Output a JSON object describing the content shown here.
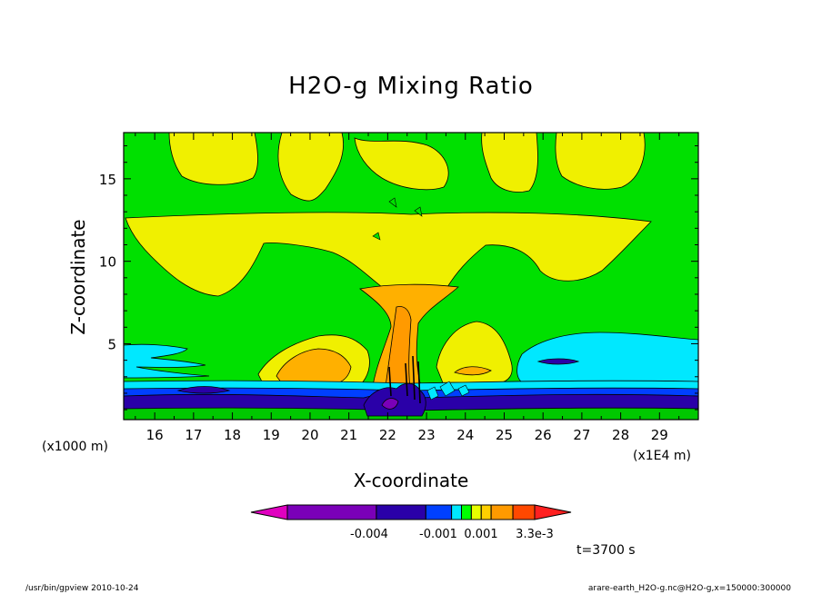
{
  "chart_data": {
    "type": "heatmap",
    "title": "H2O-g Mixing Ratio",
    "xlabel": "X-coordinate",
    "ylabel": "Z-coordinate",
    "x_unit": "(x1E4 m)",
    "y_unit": "(x1000 m)",
    "xlim": [
      15.2,
      30.0
    ],
    "ylim": [
      0.4,
      17.8
    ],
    "x_ticks": [
      16,
      17,
      18,
      19,
      20,
      21,
      22,
      23,
      24,
      25,
      26,
      27,
      28,
      29
    ],
    "y_ticks": [
      5,
      10,
      15
    ],
    "time_label": "t=3700 s",
    "colorbar": {
      "labels": [
        "-0.004",
        "-0.001",
        "0.001",
        "3.3e-3"
      ],
      "colors": [
        "#e000c0",
        "#7a00b8",
        "#2a00a8",
        "#0040ff",
        "#00e8ff",
        "#00ff00",
        "#e8ff00",
        "#ffd000",
        "#ff9a00",
        "#ff4800",
        "#ff2020"
      ]
    },
    "regions": [
      {
        "level": "band-lowest",
        "color": "#00c800"
      },
      {
        "level": "band-dark-blue",
        "color": "#2a00a8"
      },
      {
        "level": "band-blue",
        "color": "#0040ff"
      },
      {
        "level": "band-cyan",
        "color": "#00e8ff"
      },
      {
        "level": "background",
        "color": "#00e000"
      },
      {
        "level": "moist-yellow",
        "color": "#f0f000"
      },
      {
        "level": "moist-orange",
        "color": "#ffb000"
      }
    ]
  },
  "footer": {
    "left": "/usr/bin/gpview  2010-10-24",
    "right": "arare-earth_H2O-g.nc@H2O-g,x=150000:300000"
  }
}
